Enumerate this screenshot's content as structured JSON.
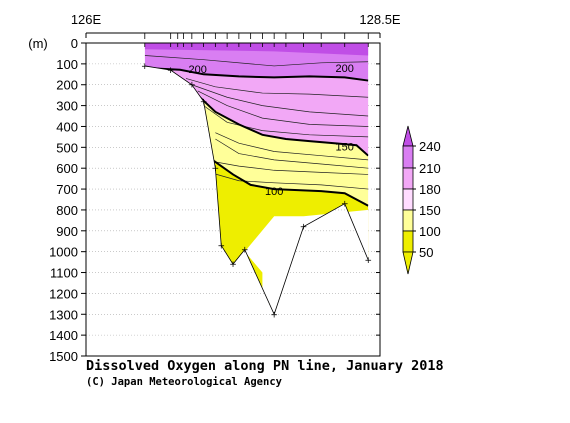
{
  "chart_data": {
    "type": "section contour",
    "title": "Dissolved Oxygen along PN line, January 2018",
    "credit": "(C) Japan Meteorological Agency",
    "x_axis": {
      "left_label": "126E",
      "right_label": "128.5E",
      "range": [
        126,
        128.5
      ]
    },
    "y_axis": {
      "unit_label": "(m)",
      "range": [
        0,
        1500
      ],
      "inverted": true,
      "ticks": [
        0,
        100,
        200,
        300,
        400,
        500,
        600,
        700,
        800,
        900,
        1000,
        1100,
        1200,
        1300,
        1400,
        1500
      ]
    },
    "grid": true,
    "colorbar": {
      "placement": "right",
      "levels": [
        50,
        100,
        150,
        180,
        210,
        240
      ],
      "colors": [
        "#eeee00",
        "#ffff99",
        "#ffdcff",
        "#f2a8f6",
        "#d97ef2",
        "#c04ee6"
      ]
    },
    "station_longitudes": [
      126.5,
      126.72,
      126.78,
      126.83,
      126.9,
      127.0,
      127.1,
      127.2,
      127.3,
      127.4,
      127.5,
      127.6,
      127.7,
      127.85,
      128.0,
      128.2,
      128.4
    ],
    "bottom_profile": [
      {
        "x": 126.5,
        "depth": 110
      },
      {
        "x": 126.72,
        "depth": 130
      },
      {
        "x": 126.9,
        "depth": 200
      },
      {
        "x": 127.0,
        "depth": 280
      },
      {
        "x": 127.1,
        "depth": 600
      },
      {
        "x": 127.15,
        "depth": 970
      },
      {
        "x": 127.25,
        "depth": 1060
      },
      {
        "x": 127.35,
        "depth": 990
      },
      {
        "x": 127.6,
        "depth": 1300
      },
      {
        "x": 127.85,
        "depth": 880
      },
      {
        "x": 128.2,
        "depth": 770
      },
      {
        "x": 128.4,
        "depth": 1040
      }
    ],
    "labeled_contours": [
      {
        "value": 200,
        "points": [
          [
            126.5,
            120
          ],
          [
            126.8,
            128
          ],
          [
            127.0,
            150
          ],
          [
            127.3,
            160
          ],
          [
            127.6,
            165
          ],
          [
            127.9,
            160
          ],
          [
            128.2,
            165
          ],
          [
            128.4,
            180
          ]
        ]
      },
      {
        "value": 150,
        "points": [
          [
            126.95,
            250
          ],
          [
            127.1,
            330
          ],
          [
            127.3,
            390
          ],
          [
            127.5,
            440
          ],
          [
            127.7,
            460
          ],
          [
            127.9,
            470
          ],
          [
            128.1,
            480
          ],
          [
            128.3,
            490
          ],
          [
            128.4,
            540
          ]
        ]
      },
      {
        "value": 100,
        "points": [
          [
            127.0,
            530
          ],
          [
            127.1,
            570
          ],
          [
            127.25,
            630
          ],
          [
            127.4,
            680
          ],
          [
            127.6,
            700
          ],
          [
            127.8,
            705
          ],
          [
            128.0,
            710
          ],
          [
            128.2,
            720
          ],
          [
            128.4,
            780
          ]
        ]
      }
    ],
    "contour_labels": [
      {
        "text": "200",
        "x": 126.95,
        "depth": 125
      },
      {
        "text": "200",
        "x": 128.2,
        "depth": 120
      },
      {
        "text": "150",
        "x": 128.2,
        "depth": 495
      },
      {
        "text": "100",
        "x": 127.6,
        "depth": 710
      }
    ]
  }
}
